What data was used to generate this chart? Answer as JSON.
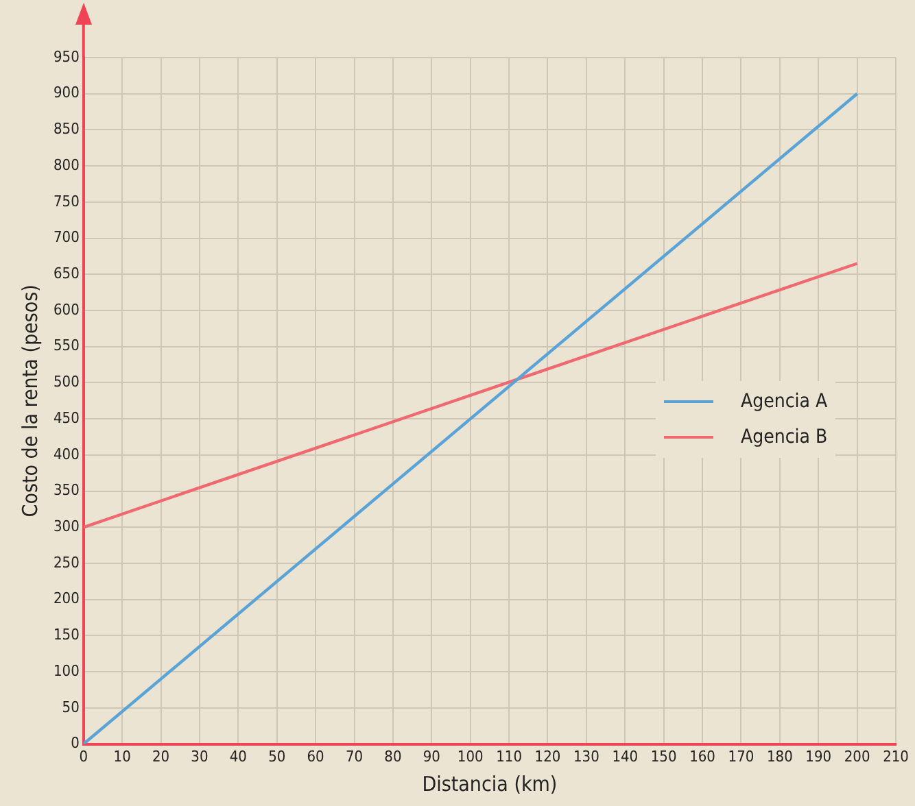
{
  "chart_data": {
    "type": "line",
    "xlabel": "Distancia (km)",
    "ylabel": "Costo de la renta (pesos)",
    "xlim": [
      0,
      210
    ],
    "xticks": [
      0,
      10,
      20,
      30,
      40,
      50,
      60,
      70,
      80,
      90,
      100,
      110,
      120,
      130,
      140,
      150,
      160,
      170,
      180,
      190,
      200,
      210
    ],
    "ylim": [
      0,
      950
    ],
    "yticks": [
      0,
      50,
      100,
      150,
      200,
      250,
      300,
      350,
      400,
      450,
      500,
      550,
      600,
      650,
      700,
      750,
      800,
      850,
      900,
      950
    ],
    "x": [
      0,
      200
    ],
    "series": [
      {
        "name": "Agencia A",
        "color": "#5aa3d6",
        "values": [
          0,
          900
        ]
      },
      {
        "name": "Agencia B",
        "color": "#ee6a70",
        "values": [
          300,
          665
        ]
      }
    ],
    "grid": true,
    "legend": "right",
    "marker": "none",
    "line_style": "solid"
  }
}
